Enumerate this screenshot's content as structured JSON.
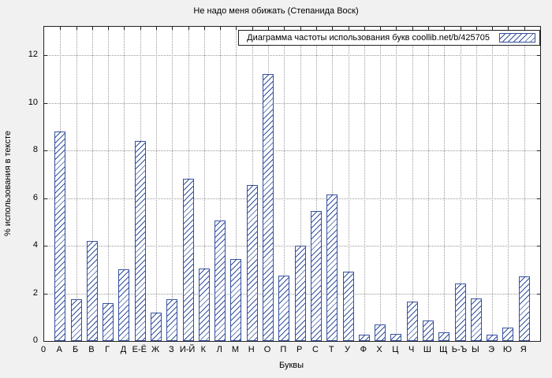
{
  "figure": {
    "title": "Не надо меня обижать (Степанида Воск)"
  },
  "legend": {
    "label": "Диаграмма частоты использования букв  coollib.net/b/425705"
  },
  "chart_data": {
    "type": "bar",
    "title": "Не надо меня обижать (Степанида Воск)",
    "legend_label": "Диаграмма частоты использования букв  coollib.net/b/425705",
    "legend_position": "top-right-inside",
    "xlabel": "Буквы",
    "ylabel": "% использования в тексте",
    "origin_tick": "0",
    "ylim": [
      0,
      13.2
    ],
    "yticks": [
      0,
      2,
      4,
      6,
      8,
      10,
      12
    ],
    "grid": true,
    "bar_color": "#35519f",
    "plot_bg": "#ffffff",
    "figure_bg": "#f1f1f1",
    "categories": [
      "А",
      "Б",
      "В",
      "Г",
      "Д",
      "Е-Ё",
      "Ж",
      "З",
      "И-Й",
      "К",
      "Л",
      "М",
      "Н",
      "О",
      "П",
      "Р",
      "С",
      "Т",
      "У",
      "Ф",
      "Х",
      "Ц",
      "Ч",
      "Ш",
      "Щ",
      "Ь-Ъ",
      "Ы",
      "Э",
      "Ю",
      "Я"
    ],
    "values": [
      8.8,
      1.75,
      4.2,
      1.6,
      3.0,
      8.4,
      1.2,
      1.75,
      6.8,
      3.05,
      5.05,
      3.45,
      6.55,
      11.2,
      2.75,
      4.0,
      5.45,
      6.15,
      2.9,
      0.25,
      0.7,
      0.3,
      1.65,
      0.85,
      0.35,
      2.4,
      1.8,
      0.25,
      0.55,
      2.7
    ]
  }
}
